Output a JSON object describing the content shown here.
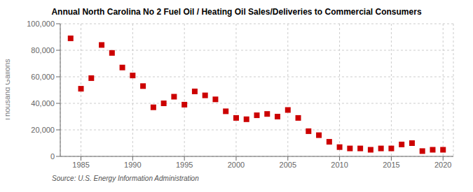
{
  "chart_data": {
    "type": "scatter",
    "title": "Annual North Carolina No 2 Fuel Oil / Heating Oil Sales/Deliveries to Commercial Consumers",
    "ylabel": "Thousand Gallons",
    "source": "Source: U.S. Energy Information Administration",
    "color": "#cc0000",
    "marker": "square",
    "grid": true,
    "xlim": [
      1983,
      2021
    ],
    "xticks": [
      1985,
      1990,
      1995,
      2000,
      2005,
      2010,
      2015,
      2020
    ],
    "ylim": [
      0,
      100000
    ],
    "yticks": [
      0,
      {
        "value": 20000,
        "label": "20,000"
      },
      {
        "value": 40000,
        "label": "40,000"
      },
      {
        "value": 60000,
        "label": "60,000"
      },
      {
        "value": 80000,
        "label": "80,000"
      },
      {
        "value": 100000,
        "label": "100,000"
      }
    ],
    "x": [
      1984,
      1985,
      1986,
      1987,
      1988,
      1989,
      1990,
      1991,
      1992,
      1993,
      1994,
      1995,
      1996,
      1997,
      1998,
      1999,
      2000,
      2001,
      2002,
      2003,
      2004,
      2005,
      2006,
      2007,
      2008,
      2009,
      2010,
      2011,
      2012,
      2013,
      2014,
      2015,
      2016,
      2017,
      2018,
      2019,
      2020
    ],
    "values": [
      89000,
      51000,
      59000,
      84000,
      78000,
      67000,
      61000,
      53000,
      37000,
      40000,
      45000,
      39000,
      49000,
      46000,
      43000,
      34000,
      29000,
      28000,
      31000,
      32000,
      30000,
      35000,
      29000,
      19000,
      16000,
      11000,
      7000,
      6000,
      6000,
      5000,
      6000,
      6000,
      9000,
      10000,
      4000,
      5000,
      5000
    ]
  }
}
